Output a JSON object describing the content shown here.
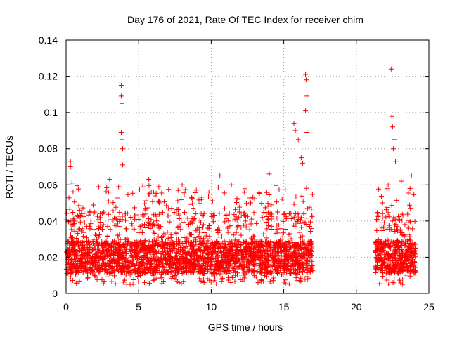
{
  "chart_data": {
    "type": "scatter",
    "title": "Day 176 of 2021, Rate Of TEC Index for receiver chim",
    "xlabel": "GPS time / hours",
    "ylabel": "ROTI / TECUs",
    "xlim": [
      0,
      25
    ],
    "ylim": [
      0,
      0.14
    ],
    "x_ticks": [
      0,
      5,
      10,
      15,
      20,
      25
    ],
    "x_tick_labels": [
      "0",
      "5",
      "10",
      "15",
      "20",
      "25"
    ],
    "y_ticks": [
      0,
      0.02,
      0.04,
      0.06,
      0.08,
      0.1,
      0.12,
      0.14
    ],
    "y_tick_labels": [
      "0",
      "0.02",
      "0.04",
      "0.06",
      "0.08",
      "0.1",
      "0.12",
      "0.14"
    ],
    "grid": true,
    "marker": "+",
    "series_color": "#ff0000",
    "data_segments": [
      {
        "x_start": 0.0,
        "x_end": 17.0,
        "baseline_low": 0.005,
        "baseline_high": 0.045
      },
      {
        "x_start": 21.3,
        "x_end": 24.1,
        "baseline_low": 0.005,
        "baseline_high": 0.045
      }
    ],
    "notable_points": [
      {
        "x": 0.3,
        "y": 0.073
      },
      {
        "x": 0.3,
        "y": 0.07
      },
      {
        "x": 0.4,
        "y": 0.061
      },
      {
        "x": 3.8,
        "y": 0.115
      },
      {
        "x": 3.8,
        "y": 0.109
      },
      {
        "x": 3.85,
        "y": 0.105
      },
      {
        "x": 3.8,
        "y": 0.089
      },
      {
        "x": 3.85,
        "y": 0.085
      },
      {
        "x": 3.9,
        "y": 0.08
      },
      {
        "x": 3.9,
        "y": 0.071
      },
      {
        "x": 3.0,
        "y": 0.063
      },
      {
        "x": 5.7,
        "y": 0.063
      },
      {
        "x": 8.0,
        "y": 0.06
      },
      {
        "x": 10.6,
        "y": 0.065
      },
      {
        "x": 14.0,
        "y": 0.066
      },
      {
        "x": 15.7,
        "y": 0.094
      },
      {
        "x": 15.8,
        "y": 0.09
      },
      {
        "x": 16.0,
        "y": 0.085
      },
      {
        "x": 16.2,
        "y": 0.075
      },
      {
        "x": 16.5,
        "y": 0.121
      },
      {
        "x": 16.55,
        "y": 0.118
      },
      {
        "x": 16.6,
        "y": 0.109
      },
      {
        "x": 16.5,
        "y": 0.101
      },
      {
        "x": 16.6,
        "y": 0.089
      },
      {
        "x": 16.3,
        "y": 0.072
      },
      {
        "x": 22.4,
        "y": 0.124
      },
      {
        "x": 22.45,
        "y": 0.098
      },
      {
        "x": 22.5,
        "y": 0.092
      },
      {
        "x": 22.6,
        "y": 0.085
      },
      {
        "x": 22.55,
        "y": 0.08
      },
      {
        "x": 22.7,
        "y": 0.073
      },
      {
        "x": 22.2,
        "y": 0.06
      },
      {
        "x": 23.1,
        "y": 0.062
      },
      {
        "x": 23.8,
        "y": 0.065
      },
      {
        "x": 23.7,
        "y": 0.058
      }
    ]
  }
}
